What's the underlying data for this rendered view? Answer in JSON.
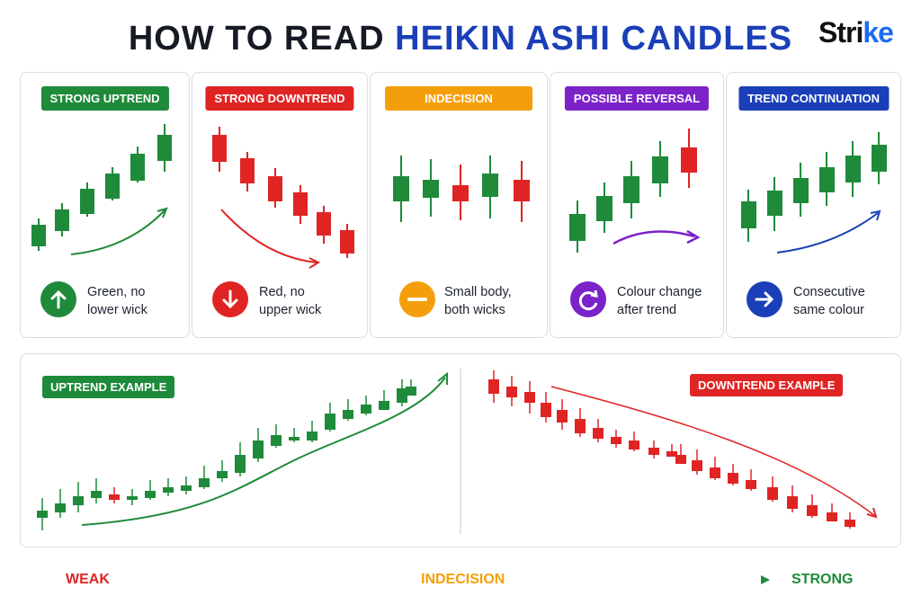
{
  "header": {
    "title_main": "HOW TO READ ",
    "title_accent": "HEIKIN ASHI CANDLES",
    "logo_main": "Stri",
    "logo_accent": "ke"
  },
  "colors": {
    "green": "#1e8a3a",
    "red": "#e02424",
    "orange": "#f59e0b",
    "purple": "#7b22c9",
    "blue": "#1a3fb8"
  },
  "cards": [
    {
      "label": "STRONG UPTREND",
      "color": "#1e8a3a",
      "icon": "arrow-up-icon",
      "line1": "Green, no",
      "line2": "lower wick"
    },
    {
      "label": "STRONG DOWNTREND",
      "color": "#e02424",
      "icon": "arrow-down-icon",
      "line1": "Red, no",
      "line2": "upper wick"
    },
    {
      "label": "INDECISION",
      "color": "#f59e0b",
      "icon": "minus-icon",
      "line1": "Small body,",
      "line2": "both wicks"
    },
    {
      "label": "POSSIBLE REVERSAL",
      "color": "#7b22c9",
      "icon": "refresh-icon",
      "line1": "Colour change",
      "line2": "after trend"
    },
    {
      "label": "TREND CONTINUATION",
      "color": "#1a3fb8",
      "icon": "arrow-right-icon",
      "line1": "Consecutive",
      "line2": "same colour"
    }
  ],
  "examples": {
    "uptrend_label": "UPTREND EXAMPLE",
    "downtrend_label": "DOWNTREND EXAMPLE"
  },
  "scale": {
    "weak": "WEAK",
    "middle": "INDECISION",
    "strong": "STRONG"
  }
}
